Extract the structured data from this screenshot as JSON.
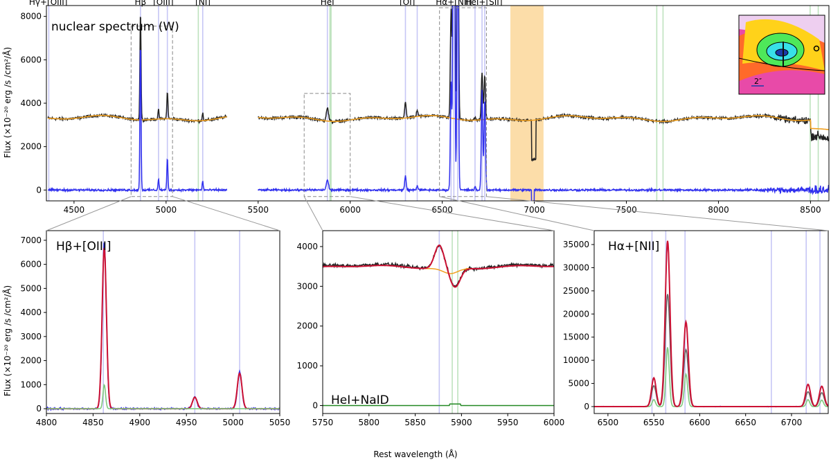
{
  "chart_data": [
    {
      "type": "line",
      "title": "nuclear spectrum (W)",
      "ylabel": "Flux (×10⁻²⁰ erg /s /cm²/Å)",
      "xlim": [
        4350,
        8600
      ],
      "ylim": [
        -500,
        8500
      ],
      "xticks": [
        "4500",
        "5000",
        "5500",
        "6000",
        "6500",
        "7000",
        "7500",
        "8000",
        "8500"
      ],
      "yticks": [
        "0",
        "2000",
        "4000",
        "6000",
        "8000"
      ],
      "line_labels": [
        {
          "text": "Hγ+[OIII]",
          "x": 4360
        },
        {
          "text": "Hβ",
          "x": 4861
        },
        {
          "text": "[OIII]",
          "x": 4985
        },
        {
          "text": "[NI]",
          "x": 5200
        },
        {
          "text": "HeI",
          "x": 5876
        },
        {
          "text": "[OI]",
          "x": 6310
        },
        {
          "text": "Hα+[NII]",
          "x": 6563
        },
        {
          "text": "HeI+[SII]",
          "x": 6725
        }
      ],
      "blue_lines": [
        4340,
        4363,
        4861,
        4959,
        5007,
        5199,
        5876,
        6300,
        6364,
        6548,
        6563,
        6584,
        6678,
        6716,
        6731
      ],
      "green_lines": [
        5175,
        5890,
        5896,
        7665,
        7699,
        8498,
        8542
      ],
      "telluric_band": [
        6870,
        7050
      ],
      "inset_label": "2″",
      "series": [
        {
          "name": "",
          "color": "#222222",
          "baseline": 3300,
          "lines": [
            {
              "x": 4340,
              "a": 1650,
              "w": 4
            },
            {
              "x": 4861,
              "a": 5000,
              "w": 3
            },
            {
              "x": 4959,
              "a": 400,
              "w": 3
            },
            {
              "x": 5007,
              "a": 1250,
              "w": 3
            },
            {
              "x": 5199,
              "a": 350,
              "w": 3
            },
            {
              "x": 5876,
              "a": 600,
              "w": 6
            },
            {
              "x": 6300,
              "a": 750,
              "w": 4
            },
            {
              "x": 6364,
              "a": 250,
              "w": 4
            },
            {
              "x": 6548,
              "a": 5000,
              "w": 4
            },
            {
              "x": 6563,
              "a": 30000,
              "w": 4
            },
            {
              "x": 6584,
              "a": 14000,
              "w": 4
            },
            {
              "x": 6678,
              "a": 150,
              "w": 3
            },
            {
              "x": 6716,
              "a": 2200,
              "w": 4
            },
            {
              "x": 6731,
              "a": 2000,
              "w": 4
            }
          ]
        },
        {
          "name": "",
          "color": "#f0a020",
          "baseline": 3300
        },
        {
          "name": "",
          "color": "#3030ee",
          "baseline": 0,
          "lines": [
            {
              "x": 4340,
              "a": 1600,
              "w": 4
            },
            {
              "x": 4861,
              "a": 6800,
              "w": 3
            },
            {
              "x": 4959,
              "a": 500,
              "w": 3
            },
            {
              "x": 5007,
              "a": 1450,
              "w": 3
            },
            {
              "x": 5199,
              "a": 400,
              "w": 3
            },
            {
              "x": 5876,
              "a": 450,
              "w": 6
            },
            {
              "x": 6300,
              "a": 650,
              "w": 4
            },
            {
              "x": 6364,
              "a": 200,
              "w": 4
            },
            {
              "x": 6548,
              "a": 5000,
              "w": 4
            },
            {
              "x": 6563,
              "a": 30000,
              "w": 4
            },
            {
              "x": 6584,
              "a": 14000,
              "w": 4
            },
            {
              "x": 6678,
              "a": 150,
              "w": 3
            },
            {
              "x": 6716,
              "a": 4600,
              "w": 4
            },
            {
              "x": 6731,
              "a": 4200,
              "w": 4
            }
          ]
        }
      ]
    },
    {
      "type": "line",
      "title": "Hβ+[OIII]",
      "ylabel": "Flux (×10⁻²⁰ erg /s /cm²/Å)",
      "xlim": [
        4800,
        5050
      ],
      "ylim": [
        -200,
        7400
      ],
      "xticks": [
        "4800",
        "4850",
        "4900",
        "4950",
        "5000",
        "5050"
      ],
      "yticks": [
        "0",
        "1000",
        "2000",
        "3000",
        "4000",
        "5000",
        "6000",
        "7000"
      ],
      "blue_lines": [
        4861,
        4959,
        5007
      ],
      "series": [
        {
          "name": "",
          "color": "#3030ee",
          "lines": [
            {
              "x": 4862,
              "a": 6900,
              "w": 2.2
            },
            {
              "x": 4959,
              "a": 500,
              "w": 2.3
            },
            {
              "x": 5007,
              "a": 1550,
              "w": 2.3
            }
          ]
        },
        {
          "name": "",
          "color": "#cc1133",
          "lines": [
            {
              "x": 4862,
              "a": 6700,
              "w": 2.3
            },
            {
              "x": 4959,
              "a": 480,
              "w": 2.5
            },
            {
              "x": 5007,
              "a": 1470,
              "w": 2.5
            }
          ]
        },
        {
          "name": "",
          "color": "#7fc97f",
          "lines": [
            {
              "x": 4862,
              "a": 1000,
              "w": 1.4
            }
          ]
        }
      ]
    },
    {
      "type": "line",
      "title": "HeI+NaID",
      "xlim": [
        5750,
        6000
      ],
      "ylim": [
        -200,
        4400
      ],
      "xticks": [
        "5750",
        "5800",
        "5850",
        "5900",
        "5950",
        "6000"
      ],
      "yticks": [
        "0",
        "1000",
        "2000",
        "3000",
        "4000"
      ],
      "blue_lines": [
        5876
      ],
      "green_lines": [
        5890,
        5896
      ],
      "series": [
        {
          "name": "",
          "color": "#222222",
          "baseline": 3500
        },
        {
          "name": "",
          "color": "#f0a020",
          "baseline": 3480
        },
        {
          "name": "",
          "color": "#cc1133",
          "baseline": 3480,
          "lines": [
            {
              "x": 5876,
              "a": 580,
              "w": 5
            },
            {
              "x": 5893,
              "a": -480,
              "w": 5.5
            }
          ]
        },
        {
          "name": "",
          "color": "#228822",
          "baseline": 0
        }
      ]
    },
    {
      "type": "line",
      "title": "Hα+[NII]",
      "xlim": [
        6485,
        6740
      ],
      "ylim": [
        -1500,
        38000
      ],
      "xticks": [
        "6500",
        "6550",
        "6600",
        "6650",
        "6700"
      ],
      "yticks": [
        "0",
        "5000",
        "10000",
        "15000",
        "20000",
        "25000",
        "30000",
        "35000"
      ],
      "blue_lines": [
        6548,
        6563,
        6584,
        6678,
        6716,
        6731
      ],
      "series": [
        {
          "name": "",
          "color": "#cc1133",
          "lines": [
            {
              "x": 6550,
              "a": 6200,
              "w": 2.5
            },
            {
              "x": 6565,
              "a": 35800,
              "w": 2.6
            },
            {
              "x": 6585,
              "a": 18300,
              "w": 2.6
            },
            {
              "x": 6718,
              "a": 4800,
              "w": 2.6
            },
            {
              "x": 6733,
              "a": 4400,
              "w": 2.6
            }
          ]
        },
        {
          "name": "",
          "color": "#666666",
          "lines": [
            {
              "x": 6550,
              "a": 4500,
              "w": 2.5
            },
            {
              "x": 6565,
              "a": 24300,
              "w": 2.6
            },
            {
              "x": 6585,
              "a": 12300,
              "w": 2.6
            },
            {
              "x": 6718,
              "a": 3200,
              "w": 2.6
            },
            {
              "x": 6733,
              "a": 3000,
              "w": 2.6
            }
          ]
        },
        {
          "name": "",
          "color": "#7fc97f",
          "lines": [
            {
              "x": 6550,
              "a": 1500,
              "w": 1.8
            },
            {
              "x": 6565,
              "a": 12800,
              "w": 1.8
            },
            {
              "x": 6585,
              "a": 7000,
              "w": 1.8
            },
            {
              "x": 6718,
              "a": 1500,
              "w": 1.8
            },
            {
              "x": 6733,
              "a": 1400,
              "w": 1.8
            }
          ]
        }
      ]
    }
  ],
  "shared_xlabel": "Rest wavelength (Å)"
}
